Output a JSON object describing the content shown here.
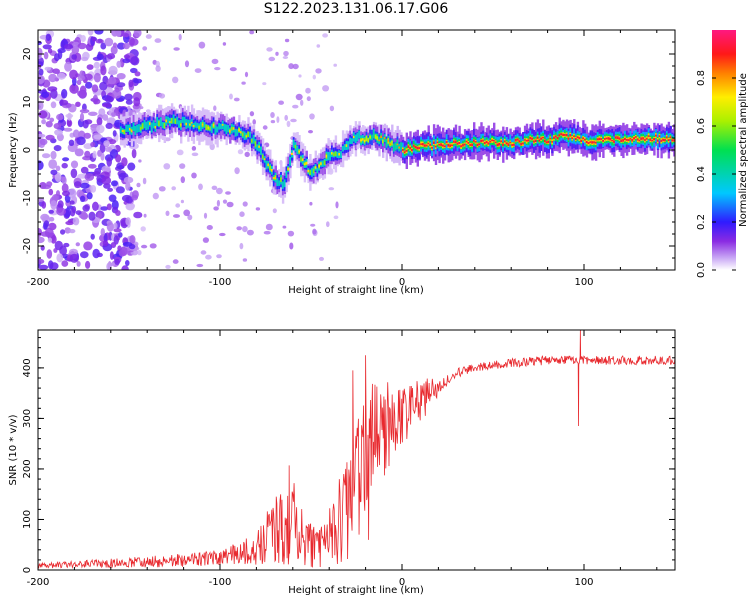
{
  "title": "S122.2023.131.06.17.G06",
  "chart_data": [
    {
      "type": "heatmap",
      "xlabel": "Height of straight line (km)",
      "ylabel": "Frequency (Hz)",
      "xlim": [
        -200,
        150
      ],
      "ylim": [
        -25,
        25
      ],
      "x_ticks": [
        -200,
        -100,
        0,
        100
      ],
      "y_ticks": [
        -20,
        -10,
        0,
        10,
        20
      ],
      "colorbar": {
        "label": "Normalized spectral amplitude",
        "range": [
          0,
          1
        ],
        "ticks": [
          0.0,
          0.2,
          0.4,
          0.6,
          0.8
        ]
      },
      "ridge": {
        "name": "dominant frequency",
        "x": [
          -155,
          -140,
          -125,
          -110,
          -95,
          -85,
          -80,
          -75,
          -70,
          -65,
          -60,
          -55,
          -50,
          -45,
          -40,
          -35,
          -30,
          -25,
          -20,
          -15,
          -10,
          -5,
          0,
          10,
          20,
          40,
          60,
          70,
          80,
          90,
          100,
          110,
          120,
          130,
          140,
          150
        ],
        "y": [
          4,
          5,
          6,
          5,
          4.5,
          3,
          1,
          -3,
          -6,
          -7,
          1,
          -2,
          -5,
          -3,
          -1,
          -1,
          1,
          3,
          2,
          3,
          2,
          1,
          0,
          1,
          1,
          1.5,
          1.5,
          2,
          2,
          3,
          2,
          2,
          2,
          2.5,
          2.5,
          2
        ]
      },
      "noise_region": {
        "x_range": [
          -200,
          -145
        ],
        "y_range": [
          -25,
          25
        ]
      }
    },
    {
      "type": "line",
      "xlabel": "Height of straight line (km)",
      "ylabel": "SNR (10 * v/v)",
      "xlim": [
        -200,
        150
      ],
      "ylim": [
        0,
        475
      ],
      "x_ticks": [
        -200,
        -100,
        0,
        100
      ],
      "y_ticks": [
        0,
        100,
        200,
        300,
        400
      ],
      "color": "#e8292e",
      "envelope": {
        "x": [
          -200,
          -150,
          -120,
          -100,
          -90,
          -80,
          -75,
          -70,
          -65,
          -60,
          -55,
          -50,
          -45,
          -40,
          -35,
          -30,
          -25,
          -20,
          -15,
          -10,
          -5,
          0,
          10,
          20,
          30,
          40,
          60,
          80,
          100,
          120,
          150
        ],
        "mean": [
          8,
          15,
          18,
          25,
          30,
          40,
          55,
          70,
          80,
          90,
          70,
          50,
          40,
          60,
          80,
          110,
          150,
          200,
          230,
          260,
          270,
          300,
          330,
          360,
          390,
          400,
          410,
          415,
          415,
          415,
          415
        ],
        "spread": [
          5,
          10,
          12,
          15,
          20,
          30,
          50,
          60,
          70,
          80,
          60,
          50,
          40,
          60,
          80,
          100,
          140,
          160,
          150,
          100,
          80,
          60,
          40,
          20,
          15,
          15,
          15,
          15,
          15,
          15,
          15
        ]
      },
      "peaks": [
        {
          "x": -62,
          "y": 207
        },
        {
          "x": -27,
          "y": 395
        },
        {
          "x": -20,
          "y": 425
        },
        {
          "x": 98,
          "y": 475
        },
        {
          "x": 97,
          "y": 285
        }
      ]
    }
  ]
}
